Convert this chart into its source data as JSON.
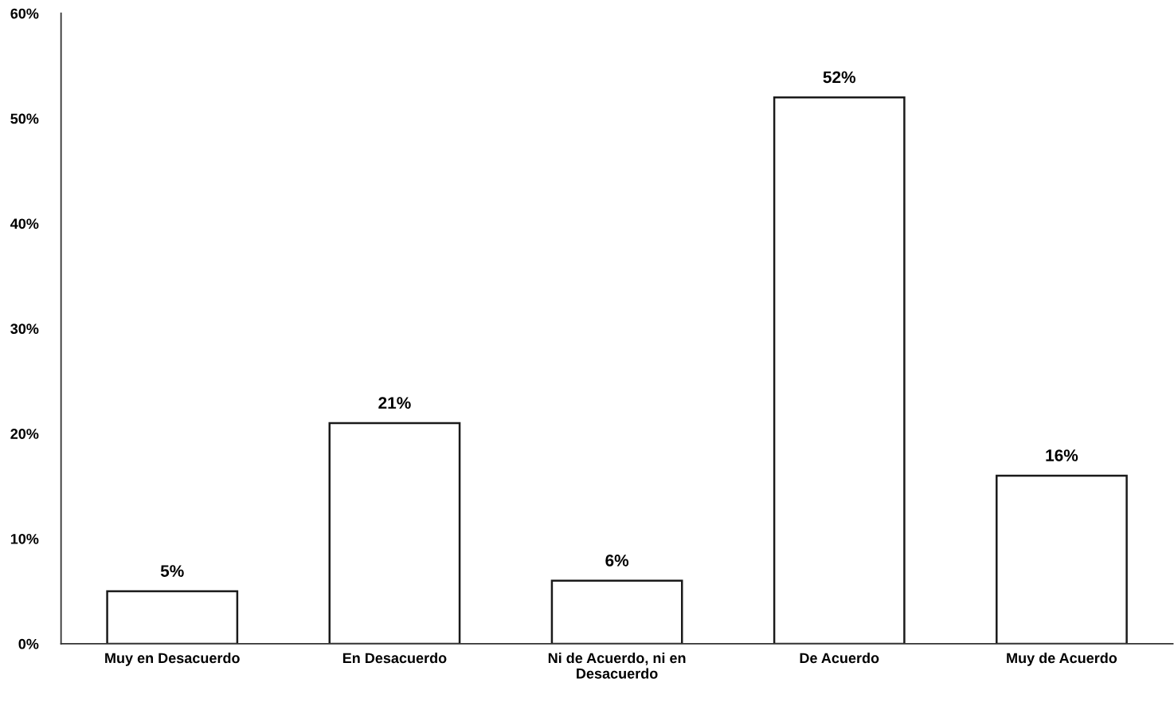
{
  "chart_data": {
    "type": "bar",
    "categories": [
      "Muy en Desacuerdo",
      "En Desacuerdo",
      "Ni de Acuerdo, ni en Desacuerdo",
      "De Acuerdo",
      "Muy de Acuerdo"
    ],
    "values": [
      5,
      21,
      6,
      52,
      16
    ],
    "value_labels": [
      "5%",
      "21%",
      "6%",
      "52%",
      "16%"
    ],
    "color": "#ffffff",
    "ylim": [
      0,
      60
    ],
    "yticks": [
      {
        "value": 0,
        "label": "0%"
      },
      {
        "value": 10,
        "label": "10%"
      },
      {
        "value": 20,
        "label": "20%"
      },
      {
        "value": 30,
        "label": "30%"
      },
      {
        "value": 40,
        "label": "40%"
      },
      {
        "value": 50,
        "label": "50%"
      },
      {
        "value": 60,
        "label": "60%"
      }
    ]
  }
}
